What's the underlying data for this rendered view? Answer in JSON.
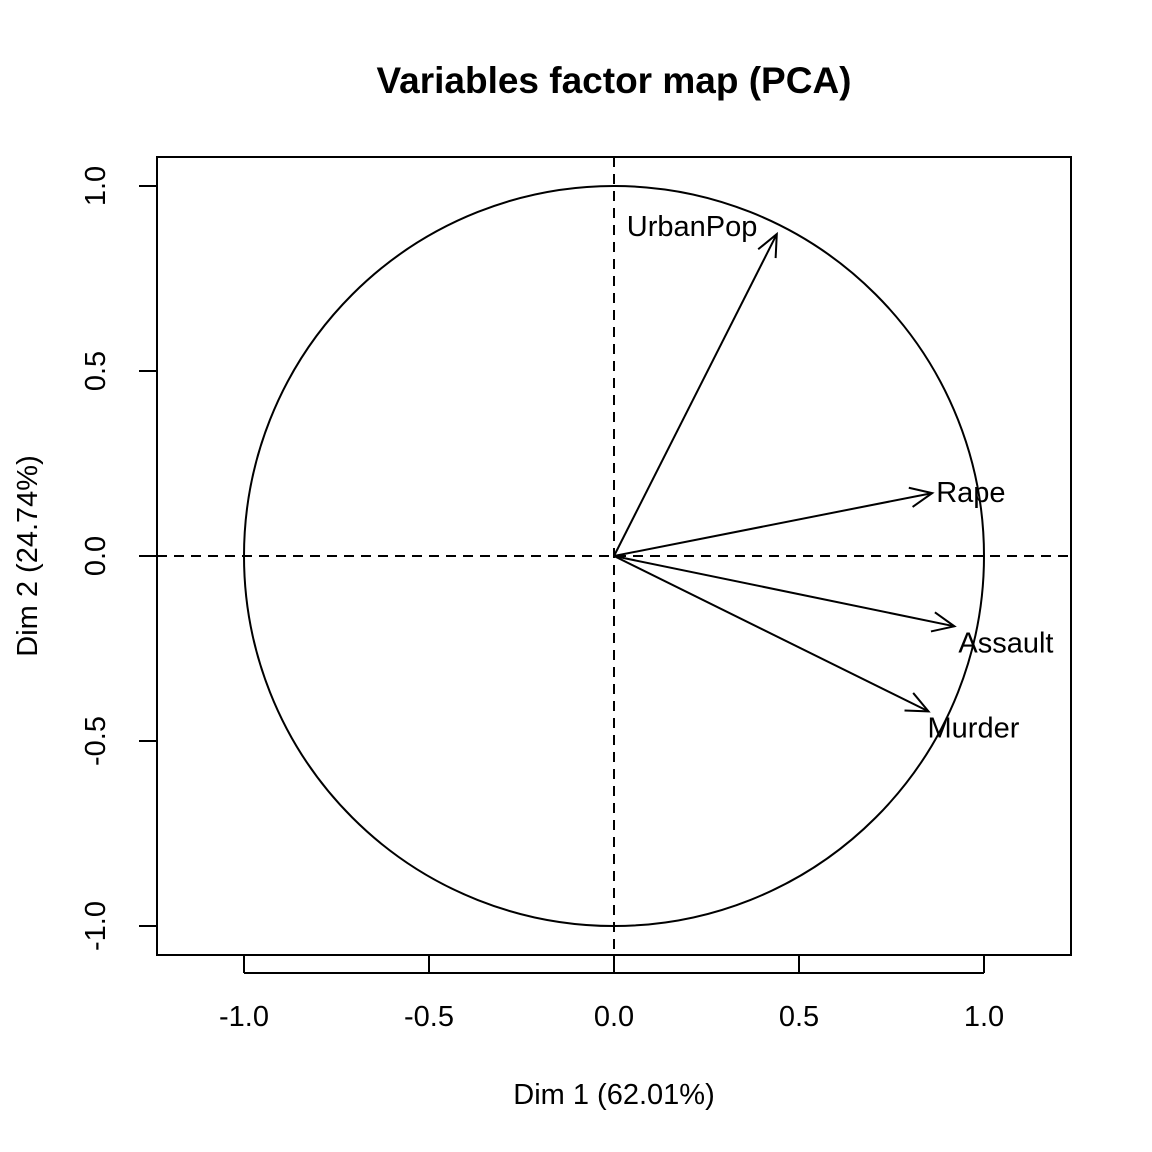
{
  "chart_data": {
    "type": "scatter",
    "title": "Variables factor map (PCA)",
    "xlabel": "Dim 1 (62.01%)",
    "ylabel": "Dim 2 (24.74%)",
    "xlim": [
      -1.2,
      1.2
    ],
    "ylim": [
      -1.08,
      1.08
    ],
    "x_ticks": [
      {
        "value": -1.0,
        "label": "-1.0"
      },
      {
        "value": -0.5,
        "label": "-0.5"
      },
      {
        "value": 0.0,
        "label": "0.0"
      },
      {
        "value": 0.5,
        "label": "0.5"
      },
      {
        "value": 1.0,
        "label": "1.0"
      }
    ],
    "y_ticks": [
      {
        "value": -1.0,
        "label": "-1.0"
      },
      {
        "value": -0.5,
        "label": "-0.5"
      },
      {
        "value": 0.0,
        "label": "0.0"
      },
      {
        "value": 0.5,
        "label": "0.5"
      },
      {
        "value": 1.0,
        "label": "1.0"
      }
    ],
    "unit_circle": true,
    "reference_lines": "dashed at x=0 and y=0",
    "grid": false,
    "variables": [
      {
        "name": "UrbanPop",
        "x": 0.44,
        "y": 0.87
      },
      {
        "name": "Rape",
        "x": 0.86,
        "y": 0.17
      },
      {
        "name": "Assault",
        "x": 0.92,
        "y": -0.19
      },
      {
        "name": "Murder",
        "x": 0.85,
        "y": -0.42
      }
    ]
  }
}
